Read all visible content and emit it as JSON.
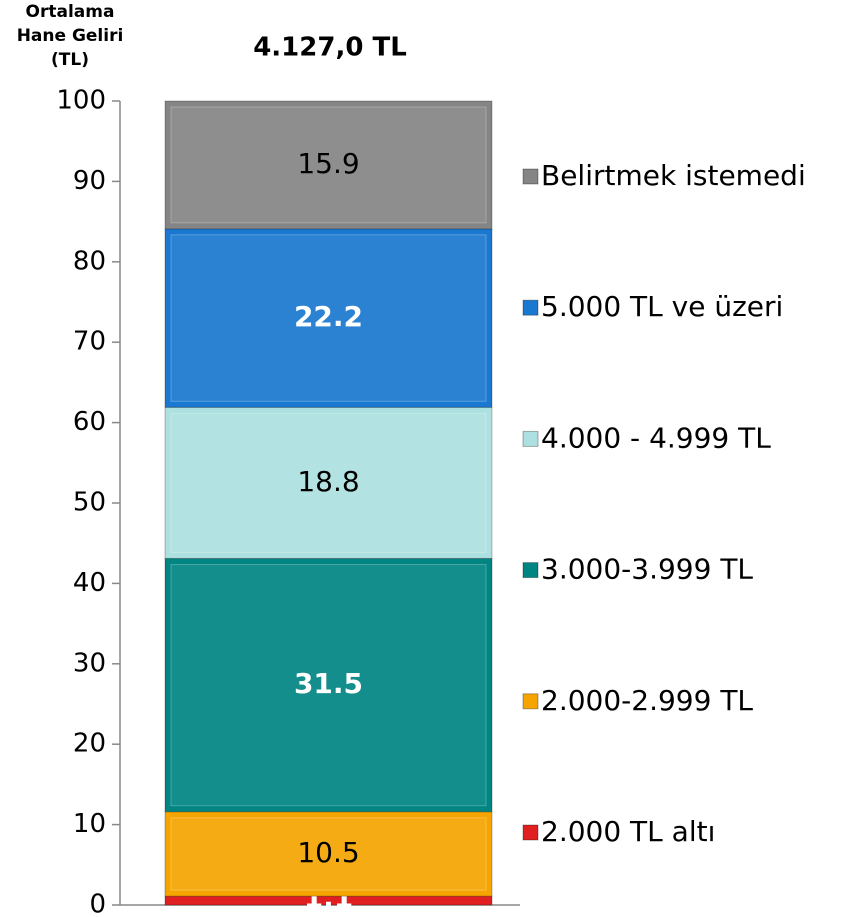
{
  "chart_data": {
    "type": "stacked_bar",
    "title": "4.127,0 TL",
    "y_label": [
      "Ortalama",
      "Hane Geliri",
      "(TL)"
    ],
    "categories": [
      null
    ],
    "series": [
      {
        "name": "2.000 TL altı",
        "color": "#e02020",
        "label_color": "#ffffff",
        "values": [
          1.1
        ]
      },
      {
        "name": "2.000-2.999 TL",
        "color": "#f5a400",
        "label_color": "#000000",
        "values": [
          10.5
        ]
      },
      {
        "name": "3.000-3.999 TL",
        "color": "#008583",
        "label_color": "#ffffff",
        "values": [
          31.5
        ]
      },
      {
        "name": "4.000 - 4.999 TL",
        "color": "#ade0e0",
        "label_color": "#000000",
        "values": [
          18.8
        ]
      },
      {
        "name": "5.000 TL ve üzeri",
        "color": "#1a78d0",
        "label_color": "#ffffff",
        "values": [
          22.2
        ]
      },
      {
        "name": "Belirtmek istemedi",
        "color": "#858585",
        "label_color": "#000000",
        "values": [
          15.9
        ]
      }
    ],
    "ylim": [
      0,
      100
    ],
    "yticks": [
      0,
      10,
      20,
      30,
      40,
      50,
      60,
      70,
      80,
      90,
      100
    ],
    "legend": "right"
  }
}
